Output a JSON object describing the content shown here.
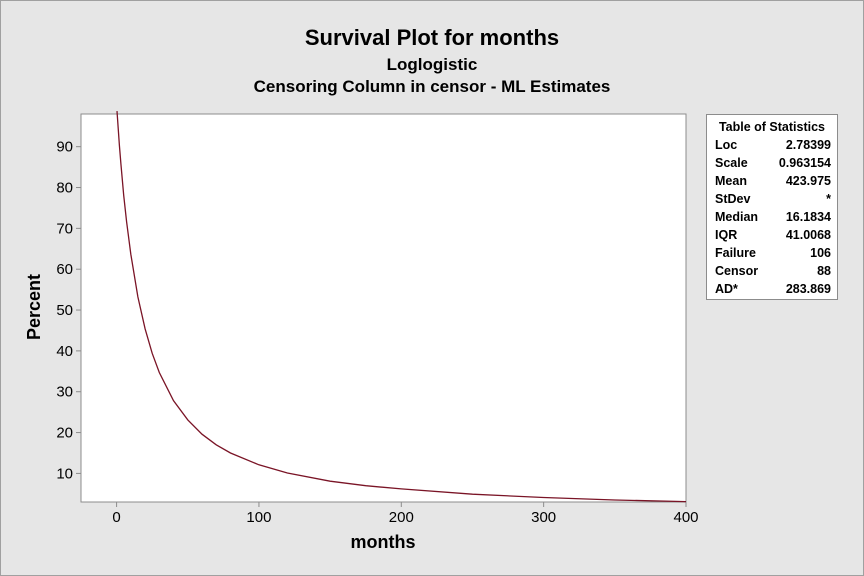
{
  "title": "Survival Plot for months",
  "subtitle": "Loglogistic",
  "subtitle2": "Censoring Column in censor - ML Estimates",
  "colors": {
    "background": "#e6e6e6",
    "plot_area": "#ffffff",
    "curve": "#7a1426",
    "axis": "#8c8c8c"
  },
  "stats": {
    "title": "Table of Statistics",
    "rows": [
      {
        "label": "Loc",
        "value": "2.78399"
      },
      {
        "label": "Scale",
        "value": "0.963154"
      },
      {
        "label": "Mean",
        "value": "423.975"
      },
      {
        "label": "StDev",
        "value": "*"
      },
      {
        "label": "Median",
        "value": "16.1834"
      },
      {
        "label": "IQR",
        "value": "41.0068"
      },
      {
        "label": "Failure",
        "value": "106"
      },
      {
        "label": "Censor",
        "value": "88"
      },
      {
        "label": "AD*",
        "value": "283.869"
      }
    ]
  },
  "chart_data": {
    "type": "line",
    "title": "Survival Plot for months",
    "xlabel": "months",
    "ylabel": "Percent",
    "xlim": [
      -25,
      400
    ],
    "ylim": [
      3,
      98
    ],
    "xticks": [
      0,
      100,
      200,
      300,
      400
    ],
    "yticks": [
      10,
      20,
      30,
      40,
      50,
      60,
      70,
      80,
      90
    ],
    "grid": false,
    "series": [
      {
        "x": [
          0.3,
          1,
          2,
          3,
          5,
          7,
          10,
          15,
          20,
          25,
          30,
          40,
          50,
          60,
          70,
          80,
          100,
          120,
          150,
          175,
          200,
          250,
          300,
          350,
          400
        ],
        "values": [
          98.7,
          95.2,
          90.3,
          85.8,
          78.1,
          71.6,
          63.7,
          53.2,
          45.4,
          39.4,
          34.7,
          27.8,
          23.1,
          19.6,
          17.0,
          15.0,
          12.1,
          10.1,
          8.1,
          7.0,
          6.2,
          4.9,
          4.1,
          3.5,
          3.1
        ]
      }
    ]
  }
}
